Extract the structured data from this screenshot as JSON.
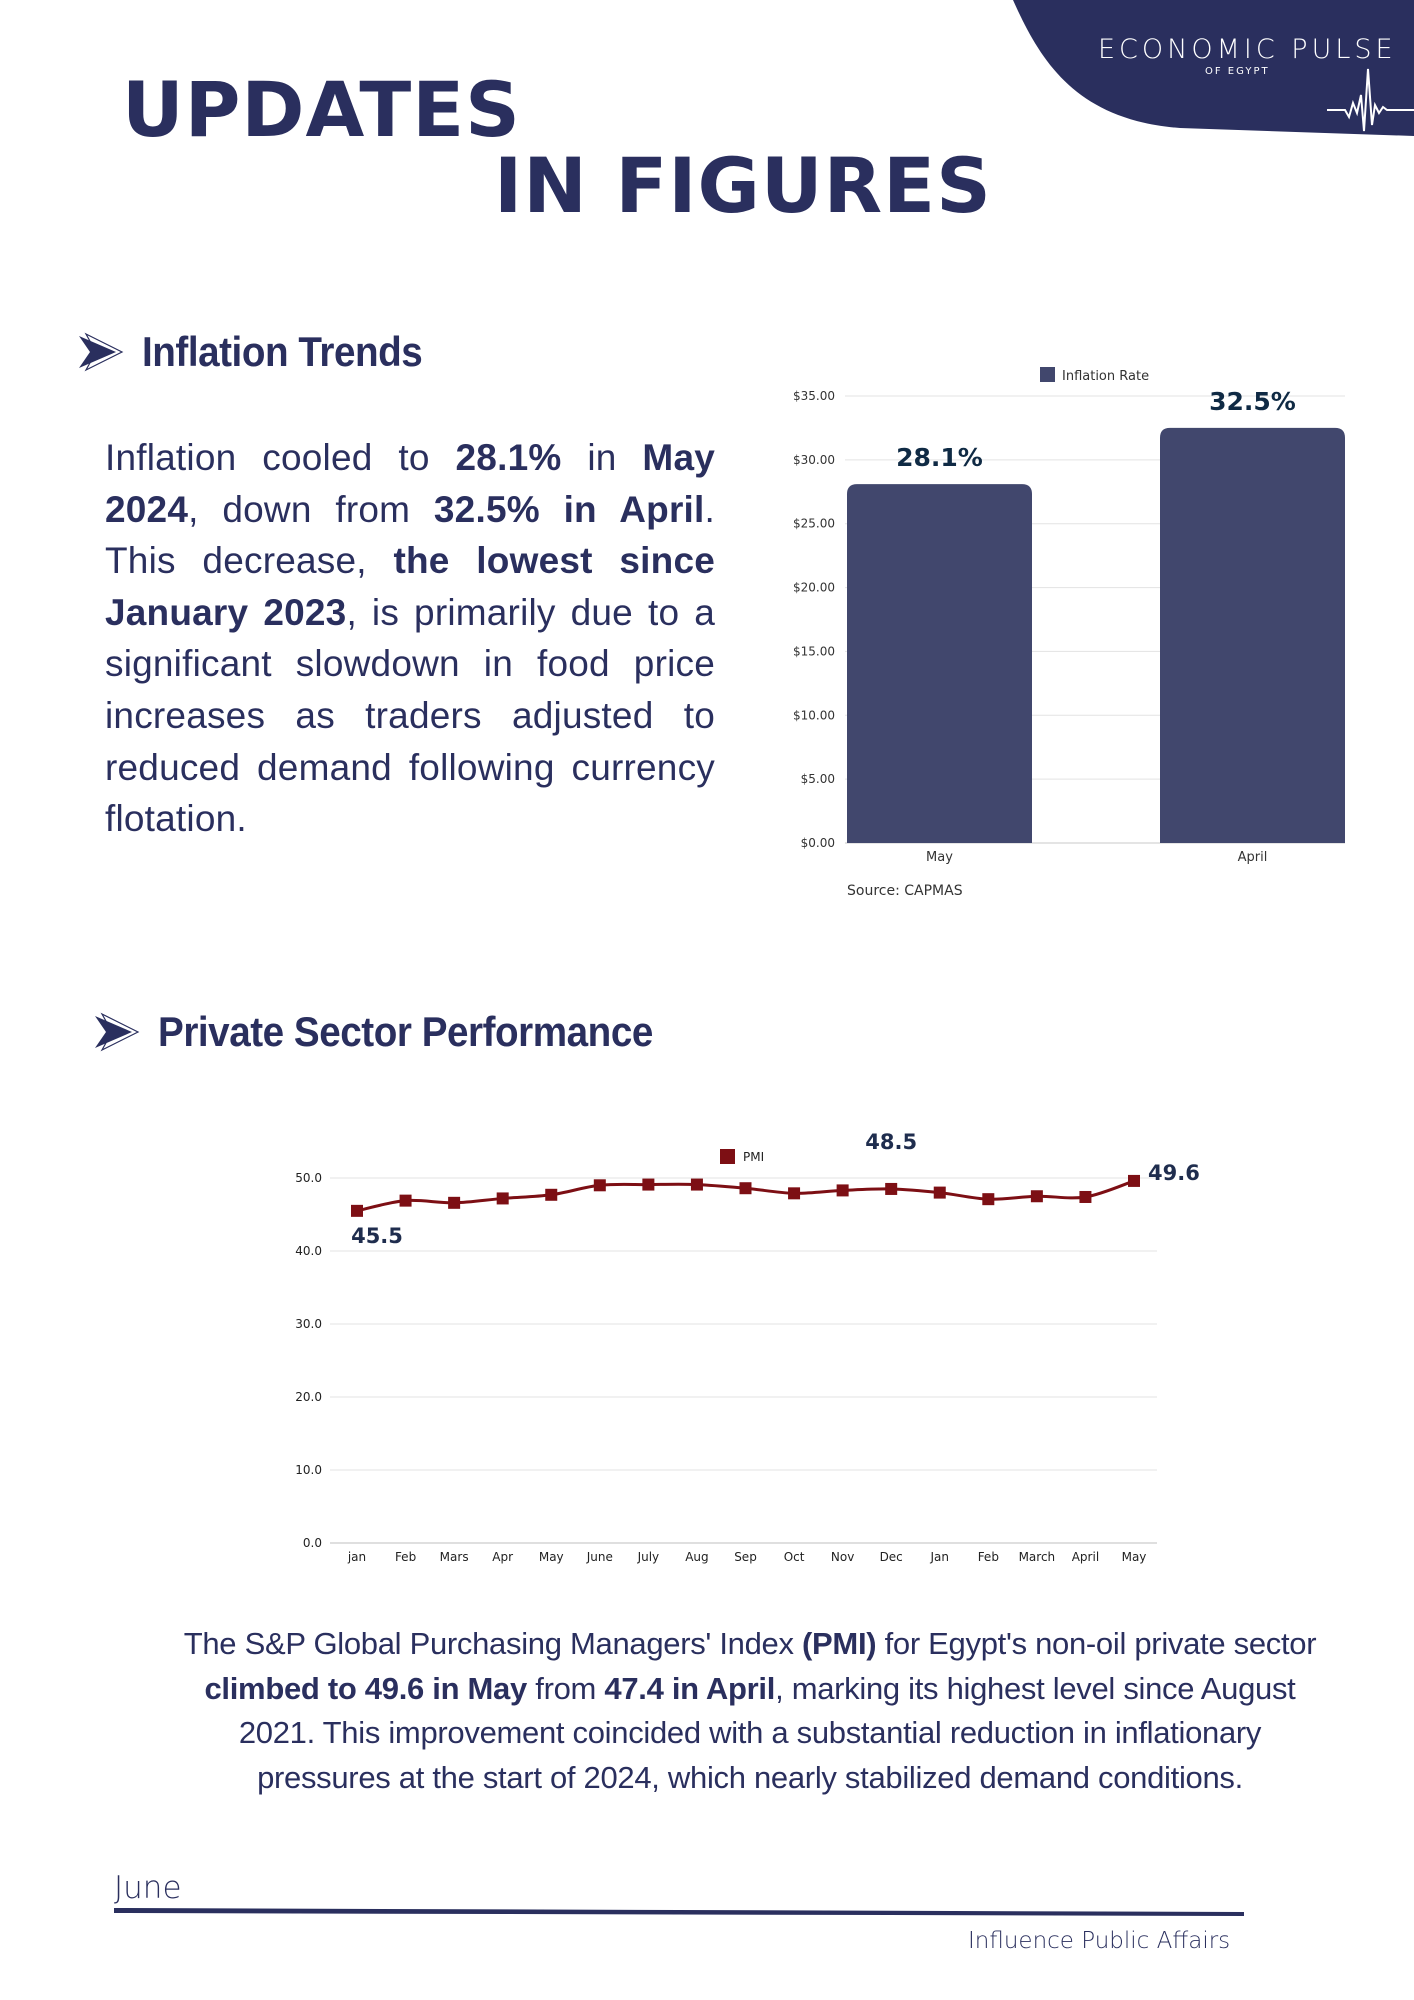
{
  "brand": {
    "title": "ECONOMIC PULSE",
    "subtitle": "OF EGYPT",
    "color": "#2a2f5e"
  },
  "page_title": {
    "line1": "UPDATES",
    "line2": "IN FIGURES"
  },
  "sections": [
    {
      "heading": "Inflation Trends",
      "paragraph": [
        {
          "t": "Inflation cooled to ",
          "b": false
        },
        {
          "t": "28.1%",
          "b": true
        },
        {
          "t": " in ",
          "b": false
        },
        {
          "t": "May 2024",
          "b": true
        },
        {
          "t": ", down from ",
          "b": false
        },
        {
          "t": "32.5% in April",
          "b": true
        },
        {
          "t": ". This decrease, ",
          "b": false
        },
        {
          "t": "the lowest since January 2023",
          "b": true
        },
        {
          "t": ", is primarily due to a significant slowdown in food price increases as traders adjusted to reduced demand following currency flotation.",
          "b": false
        }
      ]
    },
    {
      "heading": "Private Sector Performance",
      "paragraph": [
        {
          "t": "The S&P Global Purchasing Managers' Index ",
          "b": false
        },
        {
          "t": "(PMI)",
          "b": true
        },
        {
          "t": " for Egypt's non-oil private sector ",
          "b": false
        },
        {
          "t": "climbed to 49.6 in May",
          "b": true
        },
        {
          "t": " from ",
          "b": false
        },
        {
          "t": "47.4 in April",
          "b": true
        },
        {
          "t": ", marking its highest level since August 2021. This improvement coincided with a substantial reduction in inflationary pressures at the start of 2024, which nearly stabilized demand conditions.",
          "b": false
        }
      ]
    }
  ],
  "chart_data": [
    {
      "type": "bar",
      "title": "",
      "legend": "Inflation Rate",
      "legend_position": "top-center",
      "categories": [
        "May",
        "April"
      ],
      "values": [
        28.1,
        32.5
      ],
      "data_labels": [
        "28.1%",
        "32.5%"
      ],
      "ylim": [
        0,
        35
      ],
      "yticks": [
        0,
        5,
        10,
        15,
        20,
        25,
        30,
        35
      ],
      "ytick_labels": [
        "$0.00",
        "$5.00",
        "$10.00",
        "$15.00",
        "$20.00",
        "$25.00",
        "$30.00",
        "$35.00"
      ],
      "xlabel": "",
      "ylabel": "",
      "grid": true,
      "source": "Source: CAPMAS",
      "color": "#41476d",
      "label_color": "#0f2a44"
    },
    {
      "type": "line",
      "title": "",
      "legend": "PMI",
      "legend_position": "top-center",
      "categories": [
        "jan",
        "Feb",
        "Mars",
        "Apr",
        "May",
        "June",
        "July",
        "Aug",
        "Sep",
        "Oct",
        "Nov",
        "Dec",
        "Jan",
        "Feb",
        "March",
        "April",
        "May"
      ],
      "values": [
        45.5,
        46.9,
        46.6,
        47.2,
        47.7,
        49.0,
        49.1,
        49.1,
        48.6,
        47.9,
        48.3,
        48.5,
        48.0,
        47.1,
        47.5,
        47.4,
        49.6
      ],
      "annotations": [
        {
          "index": 0,
          "label": "45.5",
          "position": "below"
        },
        {
          "index": 11,
          "label": "48.5",
          "position": "above"
        },
        {
          "index": 16,
          "label": "49.6",
          "position": "right"
        }
      ],
      "ylim": [
        0,
        50
      ],
      "yticks": [
        0,
        10,
        20,
        30,
        40,
        50
      ],
      "ytick_labels": [
        "0.0",
        "10.0",
        "20.0",
        "30.0",
        "40.0",
        "50.0"
      ],
      "xlabel": "",
      "ylabel": "",
      "grid": true,
      "color": "#7d0f14",
      "label_color": "#1f2d4e"
    }
  ],
  "footer": {
    "month": "June",
    "organization": "Influence Public Affairs"
  }
}
